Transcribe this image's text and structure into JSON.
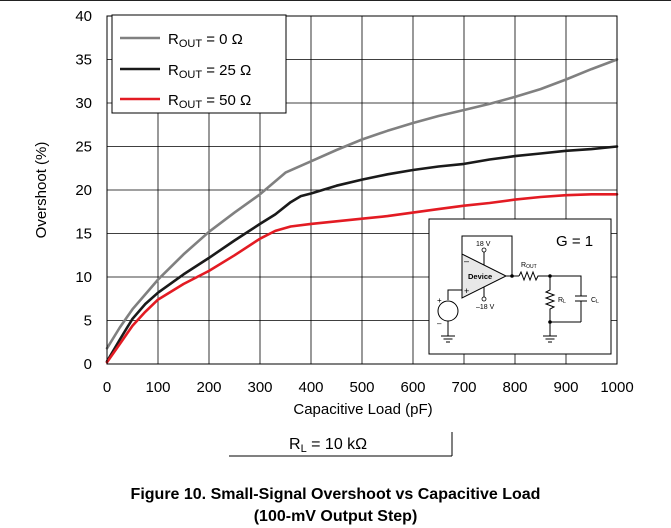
{
  "chart_data": {
    "type": "line",
    "xlabel": "Capacitive Load (pF)",
    "ylabel": "Overshoot (%)",
    "xlim": [
      0,
      1000
    ],
    "ylim": [
      0,
      40
    ],
    "x_ticks": [
      "0",
      "100",
      "200",
      "300",
      "400",
      "500",
      "600",
      "700",
      "800",
      "900",
      "1000"
    ],
    "y_ticks": [
      "0",
      "5",
      "10",
      "15",
      "20",
      "25",
      "30",
      "35",
      "40"
    ],
    "grid": true,
    "legend_position": "top-left",
    "series": [
      {
        "name_main": "R",
        "name_sub": "OUT",
        "name_rest": " = 0 Ω",
        "color": "#808080",
        "x": [
          0,
          25,
          50,
          75,
          100,
          150,
          200,
          250,
          300,
          350,
          400,
          450,
          500,
          550,
          600,
          650,
          700,
          750,
          800,
          850,
          900,
          950,
          1000
        ],
        "values": [
          1.8,
          4.2,
          6.3,
          8.0,
          9.7,
          12.6,
          15.2,
          17.4,
          19.5,
          22.0,
          23.3,
          24.6,
          25.8,
          26.8,
          27.7,
          28.5,
          29.2,
          29.9,
          30.7,
          31.6,
          32.7,
          33.9,
          35.0
        ]
      },
      {
        "name_main": "R",
        "name_sub": "OUT",
        "name_rest": " = 25 Ω",
        "color": "#1a1a1a",
        "x": [
          0,
          25,
          50,
          75,
          100,
          150,
          200,
          250,
          300,
          330,
          360,
          380,
          400,
          450,
          500,
          550,
          600,
          650,
          700,
          750,
          800,
          850,
          900,
          950,
          1000
        ],
        "values": [
          0.3,
          2.8,
          5.2,
          6.9,
          8.2,
          10.3,
          12.2,
          14.2,
          16.1,
          17.2,
          18.6,
          19.3,
          19.6,
          20.5,
          21.2,
          21.8,
          22.3,
          22.7,
          23.0,
          23.5,
          23.9,
          24.2,
          24.5,
          24.7,
          25.0
        ]
      },
      {
        "name_main": "R",
        "name_sub": "OUT",
        "name_rest": " = 50 Ω",
        "color": "#e31b23",
        "x": [
          0,
          25,
          50,
          75,
          100,
          150,
          200,
          250,
          300,
          330,
          360,
          400,
          450,
          500,
          550,
          600,
          650,
          700,
          750,
          800,
          850,
          900,
          950,
          1000
        ],
        "values": [
          0.2,
          2.3,
          4.4,
          6.0,
          7.4,
          9.2,
          10.7,
          12.5,
          14.4,
          15.3,
          15.8,
          16.1,
          16.4,
          16.7,
          17.0,
          17.4,
          17.8,
          18.2,
          18.5,
          18.9,
          19.2,
          19.4,
          19.5,
          19.5
        ]
      }
    ]
  },
  "inset": {
    "gain_label": "G = 1",
    "device_label": "Device",
    "supply_pos": "18 V",
    "supply_neg": "–18 V",
    "minus_sign": "–",
    "plus_sign": "+",
    "r_main": "R",
    "r_out_sub": "OUT",
    "r_l_sub": "L",
    "c_main": "C",
    "c_l_sub": "L"
  },
  "condition": {
    "main": "R",
    "sub": "L",
    "rest": " = 10 kΩ"
  },
  "caption": {
    "line1": "Figure 10. Small-Signal Overshoot vs Capacitive Load",
    "line2": "(100-mV Output Step)"
  }
}
